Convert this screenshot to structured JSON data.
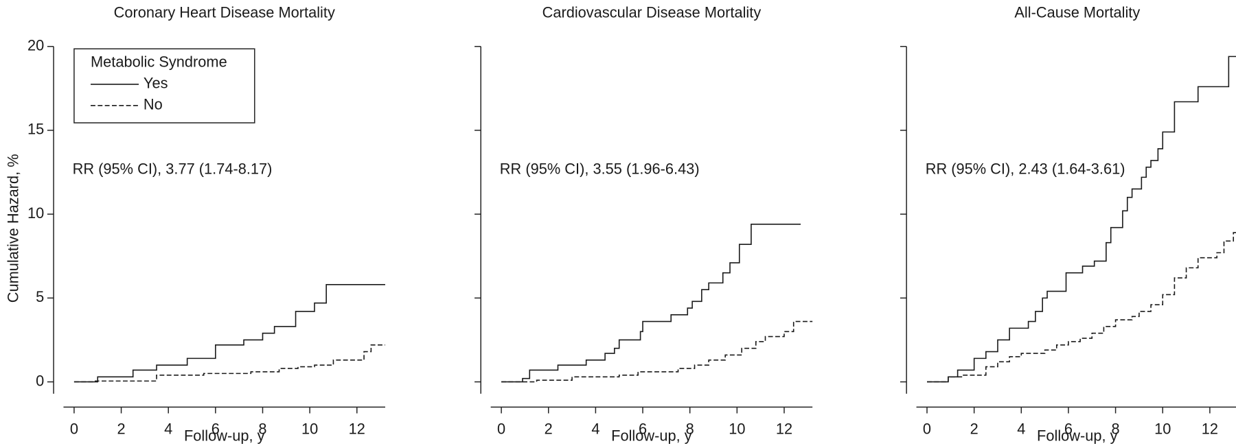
{
  "chart_data": [
    {
      "type": "line",
      "step": "post",
      "title": "Coronary Heart Disease Mortality",
      "xlabel": "Follow-up, y",
      "ylabel": "Cumulative Hazard, %",
      "annotation": "RR (95% CI), 3.77 (1.74-8.17)",
      "legend_title": "Metabolic Syndrome",
      "legend": "upper left",
      "show_ytick_labels": true,
      "xlim": [
        -0.45,
        13.2
      ],
      "xticks": [
        0,
        2,
        4,
        6,
        8,
        10,
        12
      ],
      "ylim": [
        0,
        20
      ],
      "yticks": [
        0,
        5,
        10,
        15,
        20
      ],
      "series": [
        {
          "name": "Yes",
          "color": "#1a1a1a",
          "dash": false,
          "x": [
            0,
            1.0,
            2.5,
            3.5,
            4.8,
            6.0,
            7.2,
            8.0,
            8.5,
            9.4,
            10.2,
            10.7,
            13.2
          ],
          "values": [
            0,
            0.3,
            0.7,
            1.0,
            1.4,
            2.2,
            2.5,
            2.9,
            3.3,
            4.2,
            4.7,
            5.8,
            5.8
          ]
        },
        {
          "name": "No",
          "color": "#1a1a1a",
          "dash": true,
          "x": [
            0,
            0.9,
            3.5,
            5.5,
            7.5,
            8.7,
            9.5,
            10.2,
            11.0,
            12.3,
            12.6,
            13.2
          ],
          "values": [
            0,
            0.05,
            0.4,
            0.5,
            0.6,
            0.8,
            0.9,
            1.0,
            1.3,
            1.8,
            2.2,
            2.2
          ]
        }
      ]
    },
    {
      "type": "line",
      "step": "post",
      "title": "Cardiovascular Disease Mortality",
      "xlabel": "Follow-up, y",
      "annotation": "RR (95% CI), 3.55 (1.96-6.43)",
      "show_ytick_labels": false,
      "xlim": [
        -0.45,
        13.2
      ],
      "xticks": [
        0,
        2,
        4,
        6,
        8,
        10,
        12
      ],
      "ylim": [
        0,
        20
      ],
      "yticks": [
        0,
        5,
        10,
        15,
        20
      ],
      "series": [
        {
          "color": "#1a1a1a",
          "dash": false,
          "x": [
            0,
            0.9,
            1.2,
            2.4,
            3.6,
            4.4,
            4.8,
            5.0,
            5.9,
            6.0,
            7.2,
            7.9,
            8.1,
            8.5,
            8.8,
            9.4,
            9.7,
            10.1,
            10.6,
            12.7
          ],
          "values": [
            0,
            0.2,
            0.7,
            1.0,
            1.3,
            1.7,
            2.0,
            2.5,
            3.0,
            3.6,
            4.0,
            4.4,
            4.8,
            5.5,
            5.9,
            6.5,
            7.1,
            8.2,
            9.4,
            9.4
          ]
        },
        {
          "color": "#1a1a1a",
          "dash": true,
          "x": [
            0,
            1.5,
            3.0,
            5.0,
            5.8,
            7.5,
            8.2,
            8.8,
            9.5,
            10.2,
            10.8,
            11.2,
            12.0,
            12.4,
            13.2
          ],
          "values": [
            0,
            0.1,
            0.3,
            0.4,
            0.6,
            0.8,
            1.0,
            1.3,
            1.6,
            2.0,
            2.4,
            2.7,
            3.0,
            3.6,
            3.6
          ]
        }
      ]
    },
    {
      "type": "line",
      "step": "post",
      "title": "All-Cause Mortality",
      "xlabel": "Follow-up, y",
      "annotation": "RR (95% CI), 2.43 (1.64-3.61)",
      "show_ytick_labels": false,
      "xlim": [
        -0.45,
        13.2
      ],
      "xticks": [
        0,
        2,
        4,
        6,
        8,
        10,
        12
      ],
      "ylim": [
        0,
        20
      ],
      "yticks": [
        0,
        5,
        10,
        15,
        20
      ],
      "series": [
        {
          "color": "#1a1a1a",
          "dash": false,
          "x": [
            0,
            0.9,
            1.3,
            2.0,
            2.5,
            3.0,
            3.5,
            4.3,
            4.6,
            4.9,
            5.1,
            5.9,
            6.6,
            7.1,
            7.6,
            7.8,
            8.3,
            8.5,
            8.7,
            9.1,
            9.3,
            9.5,
            9.8,
            10.0,
            10.5,
            11.5,
            12.8,
            13.2
          ],
          "values": [
            0,
            0.3,
            0.7,
            1.4,
            1.8,
            2.5,
            3.2,
            3.6,
            4.2,
            5.0,
            5.4,
            6.5,
            6.9,
            7.2,
            8.3,
            9.2,
            10.2,
            11.0,
            11.5,
            12.2,
            12.8,
            13.2,
            13.9,
            14.9,
            16.7,
            17.6,
            19.4,
            19.4
          ]
        },
        {
          "color": "#1a1a1a",
          "dash": true,
          "x": [
            0,
            0.9,
            1.5,
            2.5,
            3.0,
            3.5,
            4.0,
            5.0,
            5.5,
            6.0,
            6.5,
            7.0,
            7.5,
            8.0,
            8.7,
            9.0,
            9.5,
            10.0,
            10.5,
            11.0,
            11.5,
            12.3,
            12.6,
            13.0,
            13.2
          ],
          "values": [
            0,
            0.3,
            0.4,
            0.9,
            1.2,
            1.5,
            1.7,
            1.9,
            2.2,
            2.4,
            2.6,
            2.9,
            3.3,
            3.7,
            3.9,
            4.2,
            4.6,
            5.2,
            6.2,
            6.8,
            7.4,
            7.7,
            8.4,
            8.9,
            8.9
          ]
        }
      ]
    }
  ]
}
